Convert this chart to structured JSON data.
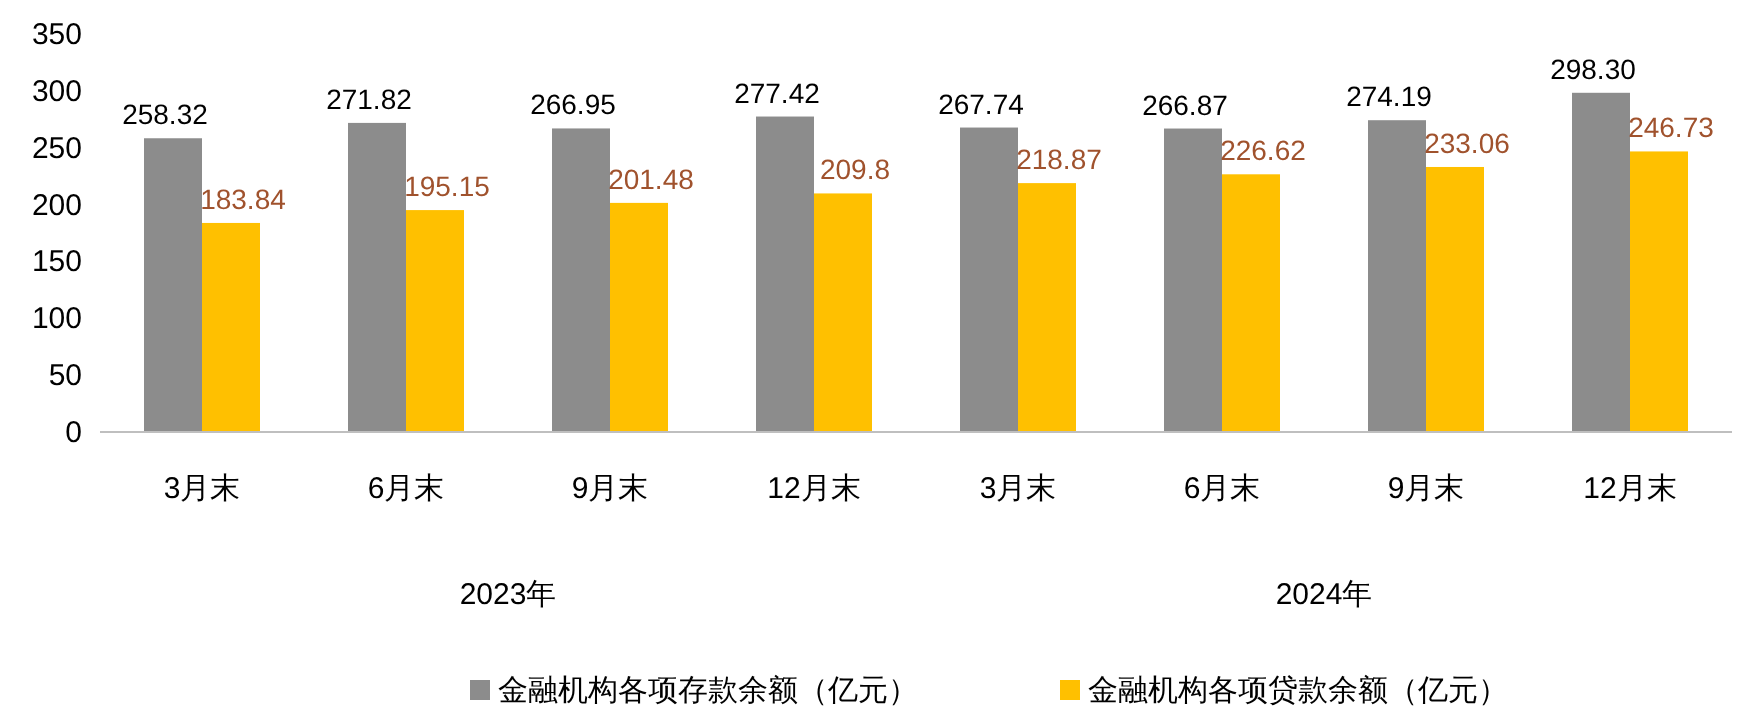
{
  "chart_data": {
    "type": "bar",
    "categories": [
      "3月末",
      "6月末",
      "9月末",
      "12月末",
      "3月末",
      "6月末",
      "9月末",
      "12月末"
    ],
    "series": [
      {
        "name": "金融机构各项存款余额（亿元）",
        "color": "#8c8c8c",
        "values": [
          258.32,
          271.82,
          266.95,
          277.42,
          267.74,
          266.87,
          274.19,
          298.3
        ],
        "value_labels": [
          "258.32",
          "271.82",
          "266.95",
          "277.42",
          "267.74",
          "266.87",
          "274.19",
          "298.30"
        ]
      },
      {
        "name": "金融机构各项贷款余额（亿元）",
        "color": "#ffc000",
        "values": [
          183.84,
          195.15,
          201.48,
          209.8,
          218.87,
          226.62,
          233.06,
          246.73
        ],
        "value_labels": [
          "183.84",
          "195.15",
          "201.48",
          "209.8",
          "218.87",
          "226.62",
          "233.06",
          "246.73"
        ]
      }
    ],
    "ylim": [
      0,
      350
    ],
    "yticks": [
      0,
      50,
      100,
      150,
      200,
      250,
      300,
      350
    ],
    "annotations": [
      "2023年",
      "2024年"
    ],
    "legend": "bottom",
    "grid": false
  }
}
